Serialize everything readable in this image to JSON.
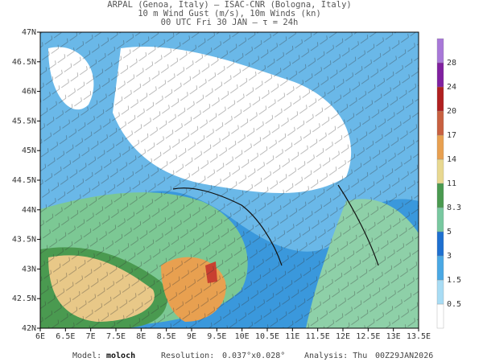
{
  "header": {
    "lines": [
      "ARPAL (Genoa, Italy)  –  ISAC-CNR (Bologna, Italy)",
      "10 m Wind Gust (m/s), 10m Winds (kn)",
      "00 UTC Fri 30 JAN  –  τ = 24h"
    ]
  },
  "map": {
    "lon_labels": [
      "6E",
      "6.5E",
      "7E",
      "7.5E",
      "8E",
      "8.5E",
      "9E",
      "9.5E",
      "10E",
      "10.5E",
      "11E",
      "11.5E",
      "12E",
      "12.5E",
      "13E",
      "13.5E"
    ],
    "lat_labels": [
      "42N",
      "42.5N",
      "43N",
      "43.5N",
      "44N",
      "44.5N",
      "45N",
      "45.5N",
      "46N",
      "46.5N",
      "47N"
    ]
  },
  "colorbar": {
    "labels": [
      "0.5",
      "1.5",
      "3",
      "5",
      "8.3",
      "11",
      "14",
      "17",
      "20",
      "24",
      "28"
    ]
  },
  "footer": {
    "model_label": "Model:",
    "model": "moloch",
    "resolution_label": "Resolution:",
    "resolution": "0.037°x0.028°",
    "analysis_label": "Analysis: Thu",
    "analysis": "00Z29JAN2026"
  }
}
